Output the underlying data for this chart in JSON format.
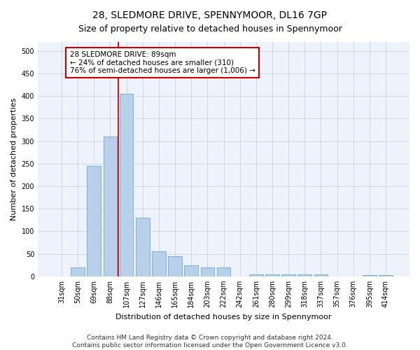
{
  "title": "28, SLEDMORE DRIVE, SPENNYMOOR, DL16 7GP",
  "subtitle": "Size of property relative to detached houses in Spennymoor",
  "xlabel": "Distribution of detached houses by size in Spennymoor",
  "ylabel": "Number of detached properties",
  "categories": [
    "31sqm",
    "50sqm",
    "69sqm",
    "88sqm",
    "107sqm",
    "127sqm",
    "146sqm",
    "165sqm",
    "184sqm",
    "203sqm",
    "222sqm",
    "242sqm",
    "261sqm",
    "280sqm",
    "299sqm",
    "318sqm",
    "337sqm",
    "357sqm",
    "376sqm",
    "395sqm",
    "414sqm"
  ],
  "values": [
    0,
    20,
    245,
    310,
    405,
    130,
    55,
    45,
    25,
    20,
    20,
    0,
    5,
    5,
    5,
    5,
    5,
    0,
    0,
    3,
    3
  ],
  "bar_color": "#b8d0ea",
  "bar_edgecolor": "#6aaad4",
  "vline_index": 3.5,
  "vline_color": "#cc0000",
  "annotation_text": "28 SLEDMORE DRIVE: 89sqm\n← 24% of detached houses are smaller (310)\n76% of semi-detached houses are larger (1,006) →",
  "annotation_box_facecolor": "#ffffff",
  "annotation_box_edgecolor": "#cc0000",
  "ylim": [
    0,
    520
  ],
  "yticks": [
    0,
    50,
    100,
    150,
    200,
    250,
    300,
    350,
    400,
    450,
    500
  ],
  "grid_color": "#ccd8ed",
  "background_color": "#eef2fb",
  "footer_line1": "Contains HM Land Registry data © Crown copyright and database right 2024.",
  "footer_line2": "Contains public sector information licensed under the Open Government Licence v3.0.",
  "title_fontsize": 10,
  "subtitle_fontsize": 9,
  "axis_fontsize": 8,
  "tick_fontsize": 7,
  "footer_fontsize": 6.5,
  "annotation_fontsize": 7.5
}
